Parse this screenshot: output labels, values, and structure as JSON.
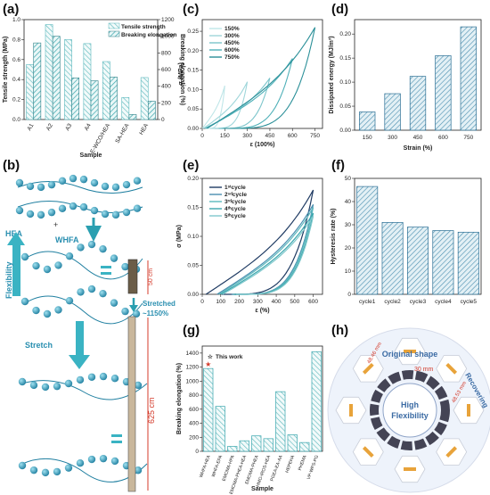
{
  "panels": {
    "a": "(a)",
    "b": "(b)",
    "c": "(c)",
    "d": "(d)",
    "e": "(e)",
    "f": "(f)",
    "g": "(g)",
    "h": "(h)"
  },
  "colors": {
    "teal": "#5bb8bd",
    "teal_dark": "#2c7f86",
    "navy": "#1f3b63",
    "light_teal": "#a8dadd",
    "red": "#d43b2b"
  },
  "chart_data": [
    {
      "id": "a",
      "type": "bar",
      "categories": [
        "A1",
        "A2",
        "A3",
        "A4",
        "E-WCO/HEA",
        "SA-HEA",
        "HEA"
      ],
      "series": [
        {
          "name": "Tensile strength",
          "values": [
            0.55,
            0.95,
            0.8,
            0.76,
            0.58,
            0.22,
            0.42
          ]
        },
        {
          "name": "Breaking elongation",
          "values": [
            920,
            1000,
            500,
            465,
            510,
            60,
            220
          ]
        }
      ],
      "xlabel": "Sample",
      "ylabel": "Tensile strength (MPa)",
      "y2label": "Breaking elongation (%)",
      "ylim": [
        0,
        1.0
      ],
      "y2lim": [
        0,
        1200
      ],
      "yticks": [
        "0.0",
        "0.2",
        "0.4",
        "0.6",
        "0.8",
        "1.0"
      ],
      "y2ticks": [
        "0",
        "200",
        "400",
        "600",
        "800",
        "1000",
        "1200"
      ]
    },
    {
      "id": "c",
      "type": "line",
      "series": [
        {
          "name": "150%",
          "max_strain": 150,
          "max_stress": 0.11
        },
        {
          "name": "300%",
          "max_strain": 300,
          "max_stress": 0.12
        },
        {
          "name": "450%",
          "max_strain": 450,
          "max_stress": 0.13
        },
        {
          "name": "600%",
          "max_strain": 600,
          "max_stress": 0.18
        },
        {
          "name": "750%",
          "max_strain": 750,
          "max_stress": 0.26
        }
      ],
      "xlabel": "ε (100%)",
      "ylabel": "σ (MPa)",
      "xlim": [
        0,
        800
      ],
      "ylim": [
        0,
        0.28
      ],
      "xticks": [
        "0",
        "150",
        "300",
        "450",
        "600",
        "750"
      ],
      "yticks": [
        "0.00",
        "0.05",
        "0.10",
        "0.15",
        "0.20",
        "0.25"
      ]
    },
    {
      "id": "d",
      "type": "bar",
      "categories": [
        "150",
        "300",
        "450",
        "600",
        "750"
      ],
      "values": [
        0.038,
        0.076,
        0.112,
        0.155,
        0.215
      ],
      "xlabel": "Strain (%)",
      "ylabel": "Dissipated energy (MJ/m³)",
      "ylim": [
        0,
        0.23
      ],
      "yticks": [
        "0.00",
        "0.05",
        "0.10",
        "0.15",
        "0.20"
      ]
    },
    {
      "id": "e",
      "type": "line",
      "series": [
        {
          "name": "1ˢᵗcycle",
          "max_stress": 0.18
        },
        {
          "name": "2ⁿᵈcycle",
          "max_stress": 0.155
        },
        {
          "name": "3ʳᵈcycle",
          "max_stress": 0.15
        },
        {
          "name": "4ᵗʰcycle",
          "max_stress": 0.14
        },
        {
          "name": "5ᵗʰcycle",
          "max_stress": 0.135
        }
      ],
      "xlabel": "ε (%)",
      "ylabel": "σ (MPa)",
      "xlim": [
        0,
        650
      ],
      "ylim": [
        0,
        0.2
      ],
      "xticks": [
        "0",
        "100",
        "200",
        "300",
        "400",
        "500",
        "600"
      ],
      "yticks": [
        "0.00",
        "0.05",
        "0.10",
        "0.15",
        "0.20"
      ]
    },
    {
      "id": "f",
      "type": "bar",
      "categories": [
        "cycle1",
        "cycle2",
        "cycle3",
        "cycle4",
        "cycle5"
      ],
      "values": [
        46.5,
        31,
        29,
        27.5,
        26.8
      ],
      "ylabel": "Hysteresis rate (%)",
      "ylim": [
        0,
        50
      ],
      "yticks": [
        "0",
        "10",
        "20",
        "30",
        "40",
        "50"
      ]
    },
    {
      "id": "g",
      "type": "bar",
      "categories": [
        "WHFA-HEA",
        "WHFA-EPA",
        "EMOMA-HPA",
        "EMOMA-PHEA-HEA",
        "EMOMA-PHEA",
        "HMO-IROS-HEA",
        "PGEA-EA-AA",
        "HEPEHA",
        "PHEMA",
        "VP-WPS-PG"
      ],
      "values": [
        1180,
        640,
        70,
        150,
        220,
        180,
        850,
        235,
        125,
        1420
      ],
      "highlight_index": 0,
      "annotation": "This work",
      "xlabel": "Sample",
      "ylabel": "Breaking elongation (%)",
      "ylim": [
        0,
        1500
      ],
      "yticks": [
        "0",
        "200",
        "400",
        "600",
        "800",
        "1000",
        "1200",
        "1400"
      ]
    }
  ],
  "panel_b": {
    "hea": "HEA",
    "whfa": "WHFA",
    "flexibility": "Flexibility",
    "stretch": "Stretch",
    "stretched": "Stretched",
    "stretched_pct": "~1150%",
    "len_orig": "50 cm",
    "len_stretch": "625 cm"
  },
  "panel_h": {
    "original_shape": "Original shape",
    "recovering": "Recovering",
    "center1": "High",
    "center2": "Flexibility",
    "dim1": "30 mm",
    "dim2": "48.46 mm",
    "dim3": "48.53 mm"
  }
}
